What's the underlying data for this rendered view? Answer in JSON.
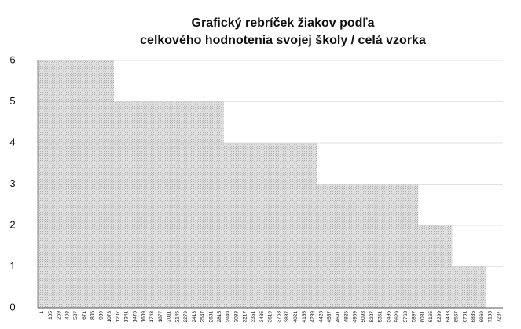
{
  "chart_data": {
    "type": "bar",
    "title": [
      "Grafický rebríček žiakov podľa",
      "celkového hodnotenia svojej školy / celá vzorka"
    ],
    "categories": [
      "1",
      "135",
      "269",
      "403",
      "537",
      "671",
      "805",
      "939",
      "1073",
      "1207",
      "1341",
      "1475",
      "1609",
      "1743",
      "1877",
      "2011",
      "2145",
      "2279",
      "2413",
      "2547",
      "2681",
      "2815",
      "2949",
      "3083",
      "3217",
      "3351",
      "3485",
      "3619",
      "3753",
      "3887",
      "4021",
      "4155",
      "4289",
      "4423",
      "4557",
      "4691",
      "4825",
      "4959",
      "5093",
      "5227",
      "5361",
      "5495",
      "5629",
      "5763",
      "5897",
      "6031",
      "6165",
      "6299",
      "6433",
      "6567",
      "6701",
      "6835",
      "6969",
      "7103",
      "7237"
    ],
    "values": [
      6,
      6,
      6,
      6,
      6,
      6,
      6,
      6,
      6,
      5,
      5,
      5,
      5,
      5,
      5,
      5,
      5,
      5,
      5,
      5,
      5,
      5,
      4,
      4,
      4,
      4,
      4,
      4,
      4,
      4,
      4,
      4,
      4,
      3,
      3,
      3,
      3,
      3,
      3,
      3,
      3,
      3,
      3,
      3,
      3,
      2,
      2,
      2,
      2,
      1,
      1,
      1,
      1,
      0,
      0
    ],
    "color": "#c4c4c4",
    "ylim": [
      0,
      6
    ],
    "yticks": [
      0,
      1,
      2,
      3,
      4,
      5,
      6
    ],
    "grid": true
  }
}
